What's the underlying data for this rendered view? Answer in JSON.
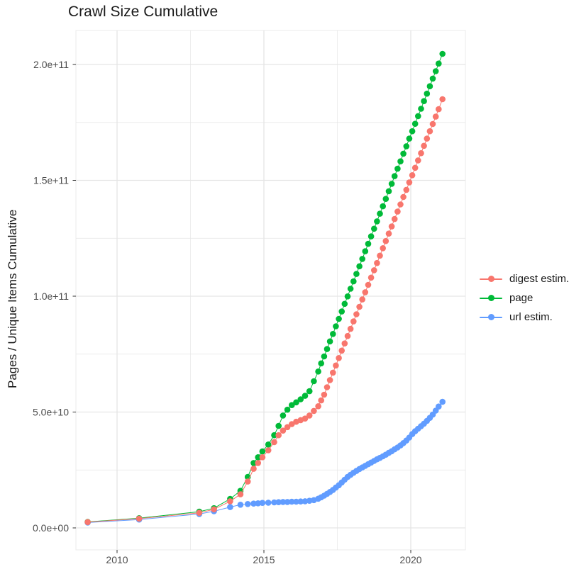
{
  "page": {
    "title": "Crawl Size Cumulative"
  },
  "chart_data": {
    "type": "scatter",
    "title": "Crawl Size Cumulative",
    "xlabel": "",
    "ylabel": "Pages / Unique Items Cumulative",
    "legend_position": "right",
    "grid": "major and minor, light gray on white panel",
    "xlim": [
      2008.6,
      2021.8
    ],
    "ylim": [
      -10000000000.0,
      215000000000.0
    ],
    "x_axis": {
      "tick_labels": [
        "2010",
        "2015",
        "2020"
      ],
      "tick_years": [
        2010,
        2015,
        2020
      ],
      "minor_years": [
        2012.5,
        2017.5
      ]
    },
    "y_axis": {
      "tick_labels": [
        "0.0e+00",
        "5.0e+10",
        "1.0e+11",
        "1.5e+11",
        "2.0e+11"
      ],
      "tick_values_billions": [
        0,
        50,
        100,
        150,
        200
      ],
      "minor_values_billions": [
        25,
        75,
        125,
        175
      ],
      "unit_note": "series values stored in billions (1e9) of pages / unique items"
    },
    "x_years": [
      2009.0,
      2010.75,
      2012.8,
      2013.3,
      2013.85,
      2014.2,
      2014.45,
      2014.65,
      2014.8,
      2014.95,
      2015.15,
      2015.35,
      2015.5,
      2015.65,
      2015.8,
      2015.95,
      2016.1,
      2016.25,
      2016.4,
      2016.55,
      2016.7,
      2016.85,
      2016.95,
      2017.05,
      2017.15,
      2017.25,
      2017.35,
      2017.45,
      2017.55,
      2017.65,
      2017.75,
      2017.85,
      2017.95,
      2018.05,
      2018.15,
      2018.25,
      2018.35,
      2018.45,
      2018.55,
      2018.65,
      2018.75,
      2018.85,
      2018.95,
      2019.05,
      2019.15,
      2019.25,
      2019.35,
      2019.45,
      2019.55,
      2019.65,
      2019.75,
      2019.85,
      2019.95,
      2020.05,
      2020.15,
      2020.25,
      2020.35,
      2020.45,
      2020.55,
      2020.65,
      2020.75,
      2020.85,
      2020.95,
      2021.08
    ],
    "series": [
      {
        "name": "digest estim.",
        "color": "#F8766D",
        "values_billions": [
          2.5,
          4.0,
          6.5,
          8.0,
          11.5,
          14.5,
          20.0,
          25.5,
          28.0,
          30.5,
          33.5,
          37.0,
          40.0,
          42.0,
          43.5,
          44.8,
          45.8,
          46.5,
          47.2,
          48.5,
          50.5,
          52.5,
          55.0,
          57.5,
          60.7,
          63.8,
          67.0,
          70.1,
          73.3,
          76.5,
          79.6,
          82.8,
          85.9,
          89.1,
          92.2,
          95.4,
          98.6,
          101.7,
          104.9,
          108.0,
          111.2,
          114.3,
          117.5,
          120.7,
          123.8,
          127.0,
          130.1,
          133.3,
          136.5,
          139.6,
          142.8,
          145.9,
          149.1,
          152.2,
          155.4,
          158.6,
          161.7,
          164.9,
          168.0,
          171.2,
          174.3,
          177.5,
          180.7,
          185.0
        ]
      },
      {
        "name": "page",
        "color": "#00BA38",
        "values_billions": [
          2.6,
          4.2,
          7.0,
          8.5,
          12.5,
          16.0,
          22.0,
          28.0,
          30.5,
          33.0,
          36.0,
          40.0,
          44.0,
          48.5,
          51.0,
          53.0,
          54.2,
          55.5,
          57.0,
          59.0,
          63.3,
          67.5,
          71.0,
          74.0,
          77.2,
          80.5,
          83.7,
          87.0,
          90.2,
          93.4,
          96.7,
          99.9,
          103.2,
          106.4,
          109.6,
          112.9,
          116.1,
          119.4,
          122.6,
          125.8,
          129.1,
          132.3,
          135.6,
          138.8,
          142.0,
          145.3,
          148.5,
          151.8,
          155.0,
          158.2,
          161.5,
          164.7,
          168.0,
          171.2,
          174.4,
          177.7,
          180.9,
          184.2,
          187.4,
          190.6,
          193.9,
          197.1,
          200.4,
          204.6
        ]
      },
      {
        "name": "url estim.",
        "color": "#619CFF",
        "values_billions": [
          2.3,
          3.6,
          6.0,
          7.2,
          9.0,
          10.0,
          10.3,
          10.5,
          10.6,
          10.8,
          10.9,
          11.0,
          11.1,
          11.2,
          11.2,
          11.3,
          11.3,
          11.4,
          11.5,
          11.7,
          12.0,
          12.6,
          13.2,
          13.9,
          14.7,
          15.5,
          16.4,
          17.4,
          18.4,
          19.6,
          20.8,
          22.0,
          22.9,
          23.8,
          24.6,
          25.4,
          26.1,
          26.8,
          27.5,
          28.2,
          28.9,
          29.6,
          30.2,
          30.9,
          31.6,
          32.4,
          33.1,
          33.9,
          34.7,
          35.6,
          36.6,
          37.7,
          39.0,
          40.5,
          41.7,
          42.8,
          43.9,
          45.0,
          46.2,
          47.5,
          48.9,
          50.6,
          52.4,
          54.4
        ]
      }
    ],
    "style": {
      "grid_color": "#e5e5e5",
      "tick_color": "#333333",
      "tick_label_color": "#4d4d4d",
      "title_color": "#1a1a1a",
      "point_radius_px": 4.3
    }
  }
}
